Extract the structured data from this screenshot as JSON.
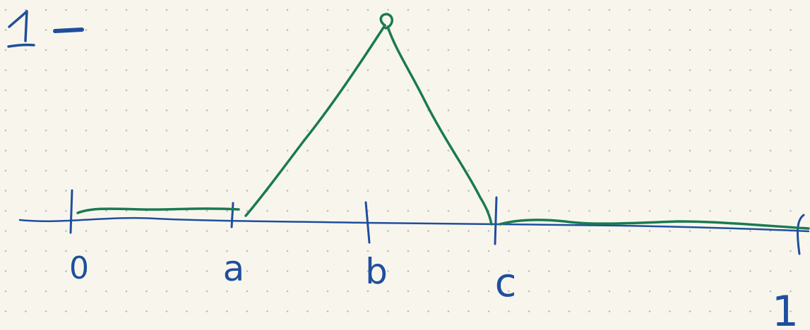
{
  "diagram": {
    "y_axis_label": "1",
    "tick_labels": [
      "0",
      "a",
      "b",
      "c",
      "1"
    ]
  },
  "colors": {
    "paper": "#f8f6ec",
    "dot_grid": "#b9bcc4",
    "axis_ink": "#1f4e9e",
    "curve_ink": "#1a7a52"
  }
}
